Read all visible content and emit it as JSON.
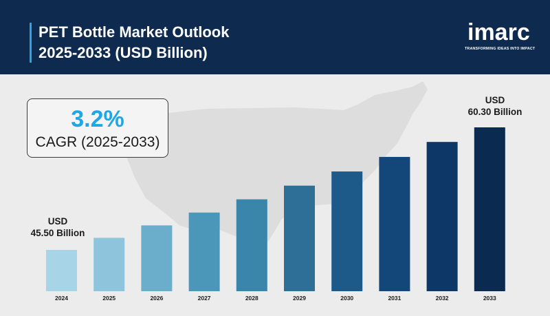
{
  "header": {
    "title_line1": "PET Bottle Market Outlook",
    "title_line2": "2025-2033 (USD Billion)"
  },
  "logo": {
    "word": "imarc",
    "tagline": "TRANSFORMING IDEAS INTO IMPACT"
  },
  "cagr": {
    "value": "3.2%",
    "label": "CAGR (2025-2033)"
  },
  "annotations": {
    "start_line1": "USD",
    "start_line2": "45.50 Billion",
    "end_line1": "USD",
    "end_line2": "60.30 Billion"
  },
  "colors": {
    "header_bg": "#0e2b4f",
    "accent": "#29a8e0",
    "cagr_value": "#1ea7e4"
  },
  "chart_data": {
    "type": "bar",
    "categories": [
      "2024",
      "2025",
      "2026",
      "2027",
      "2028",
      "2029",
      "2030",
      "2031",
      "2032",
      "2033"
    ],
    "values": [
      45.5,
      46.96,
      48.46,
      50.01,
      51.61,
      53.26,
      54.97,
      56.73,
      58.54,
      60.3
    ],
    "bar_colors": [
      "#a8d4e8",
      "#8ec5dd",
      "#6aaecc",
      "#4b97b9",
      "#3a86ab",
      "#2d6f97",
      "#1d5a8a",
      "#13477a",
      "#0d3766",
      "#0b2a50"
    ],
    "title": "PET Bottle Market Outlook 2025-2033 (USD Billion)",
    "xlabel": "",
    "ylabel": "",
    "grid": false
  }
}
